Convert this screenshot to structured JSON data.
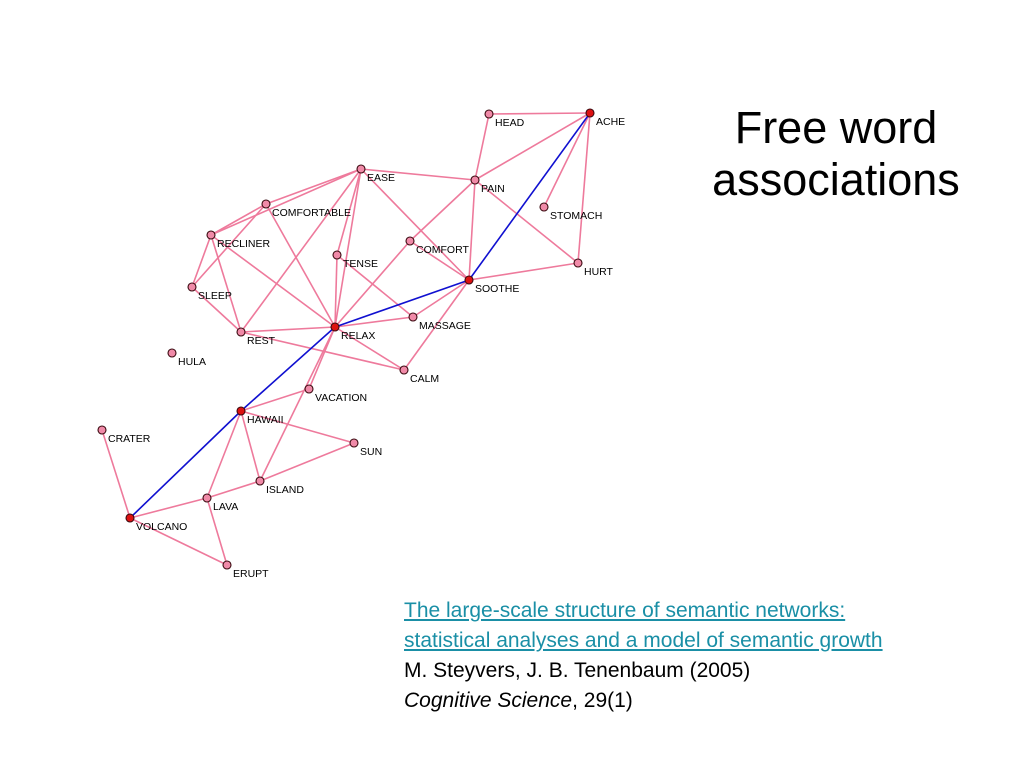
{
  "title": {
    "line1": "Free word",
    "line2": "associations"
  },
  "citation": {
    "link_line1": "The large-scale structure of semantic networks:",
    "link_line2": "statistical analyses and a model of semantic growth",
    "authors": "M. Steyvers, J. B. Tenenbaum (2005)",
    "journal": "Cognitive Science",
    "volume": ", 29(1)"
  },
  "colors": {
    "edge": "#ee7a9c",
    "path_edge": "#1010d0",
    "node_fill": "#f08aa8",
    "path_node_fill": "#dd1111",
    "node_stroke": "#3a0a10",
    "link": "#1a8fa6"
  },
  "network": {
    "nodes": [
      {
        "id": "HEAD",
        "label": "HEAD",
        "on_path": false
      },
      {
        "id": "ACHE",
        "label": "ACHE",
        "on_path": true
      },
      {
        "id": "EASE",
        "label": "EASE",
        "on_path": false
      },
      {
        "id": "PAIN",
        "label": "PAIN",
        "on_path": false
      },
      {
        "id": "COMFORTABLE",
        "label": "COMFORTABLE",
        "on_path": false
      },
      {
        "id": "STOMACH",
        "label": "STOMACH",
        "on_path": false
      },
      {
        "id": "RECLINER",
        "label": "RECLINER",
        "on_path": false
      },
      {
        "id": "COMFORT",
        "label": "COMFORT",
        "on_path": false
      },
      {
        "id": "TENSE",
        "label": "TENSE",
        "on_path": false
      },
      {
        "id": "HURT",
        "label": "HURT",
        "on_path": false
      },
      {
        "id": "SOOTHE",
        "label": "SOOTHE",
        "on_path": true
      },
      {
        "id": "SLEEP",
        "label": "SLEEP",
        "on_path": false
      },
      {
        "id": "MASSAGE",
        "label": "MASSAGE",
        "on_path": false
      },
      {
        "id": "REST",
        "label": "REST",
        "on_path": false
      },
      {
        "id": "RELAX",
        "label": "RELAX",
        "on_path": true
      },
      {
        "id": "HULA",
        "label": "HULA",
        "on_path": false
      },
      {
        "id": "CALM",
        "label": "CALM",
        "on_path": false
      },
      {
        "id": "VACATION",
        "label": "VACATION",
        "on_path": false
      },
      {
        "id": "HAWAII",
        "label": "HAWAII",
        "on_path": true
      },
      {
        "id": "CRATER",
        "label": "CRATER",
        "on_path": false
      },
      {
        "id": "SUN",
        "label": "SUN",
        "on_path": false
      },
      {
        "id": "ISLAND",
        "label": "ISLAND",
        "on_path": false
      },
      {
        "id": "LAVA",
        "label": "LAVA",
        "on_path": false
      },
      {
        "id": "VOLCANO",
        "label": "VOLCANO",
        "on_path": true
      },
      {
        "id": "ERUPT",
        "label": "ERUPT",
        "on_path": false
      }
    ],
    "edges": [
      [
        "HEAD",
        "ACHE"
      ],
      [
        "HEAD",
        "PAIN"
      ],
      [
        "ACHE",
        "PAIN"
      ],
      [
        "ACHE",
        "STOMACH"
      ],
      [
        "ACHE",
        "HURT"
      ],
      [
        "ACHE",
        "SOOTHE"
      ],
      [
        "PAIN",
        "HURT"
      ],
      [
        "PAIN",
        "COMFORT"
      ],
      [
        "PAIN",
        "SOOTHE"
      ],
      [
        "EASE",
        "PAIN"
      ],
      [
        "EASE",
        "COMFORTABLE"
      ],
      [
        "EASE",
        "RECLINER"
      ],
      [
        "EASE",
        "REST"
      ],
      [
        "EASE",
        "RELAX"
      ],
      [
        "EASE",
        "TENSE"
      ],
      [
        "EASE",
        "SOOTHE"
      ],
      [
        "COMFORTABLE",
        "RECLINER"
      ],
      [
        "COMFORTABLE",
        "SLEEP"
      ],
      [
        "COMFORTABLE",
        "RELAX"
      ],
      [
        "RECLINER",
        "SLEEP"
      ],
      [
        "RECLINER",
        "REST"
      ],
      [
        "RECLINER",
        "RELAX"
      ],
      [
        "SLEEP",
        "REST"
      ],
      [
        "COMFORT",
        "SOOTHE"
      ],
      [
        "COMFORT",
        "RELAX"
      ],
      [
        "TENSE",
        "RELAX"
      ],
      [
        "TENSE",
        "MASSAGE"
      ],
      [
        "SOOTHE",
        "HURT"
      ],
      [
        "SOOTHE",
        "MASSAGE"
      ],
      [
        "SOOTHE",
        "CALM"
      ],
      [
        "SOOTHE",
        "RELAX"
      ],
      [
        "REST",
        "RELAX"
      ],
      [
        "REST",
        "CALM"
      ],
      [
        "RELAX",
        "MASSAGE"
      ],
      [
        "RELAX",
        "CALM"
      ],
      [
        "RELAX",
        "VACATION"
      ],
      [
        "RELAX",
        "ISLAND"
      ],
      [
        "RELAX",
        "HAWAII"
      ],
      [
        "VACATION",
        "HAWAII"
      ],
      [
        "HAWAII",
        "SUN"
      ],
      [
        "HAWAII",
        "ISLAND"
      ],
      [
        "HAWAII",
        "LAVA"
      ],
      [
        "HAWAII",
        "VOLCANO"
      ],
      [
        "ISLAND",
        "SUN"
      ],
      [
        "ISLAND",
        "LAVA"
      ],
      [
        "LAVA",
        "VOLCANO"
      ],
      [
        "LAVA",
        "ERUPT"
      ],
      [
        "VOLCANO",
        "CRATER"
      ],
      [
        "VOLCANO",
        "ERUPT"
      ]
    ],
    "path": [
      "ACHE",
      "SOOTHE",
      "RELAX",
      "HAWAII",
      "VOLCANO"
    ]
  }
}
